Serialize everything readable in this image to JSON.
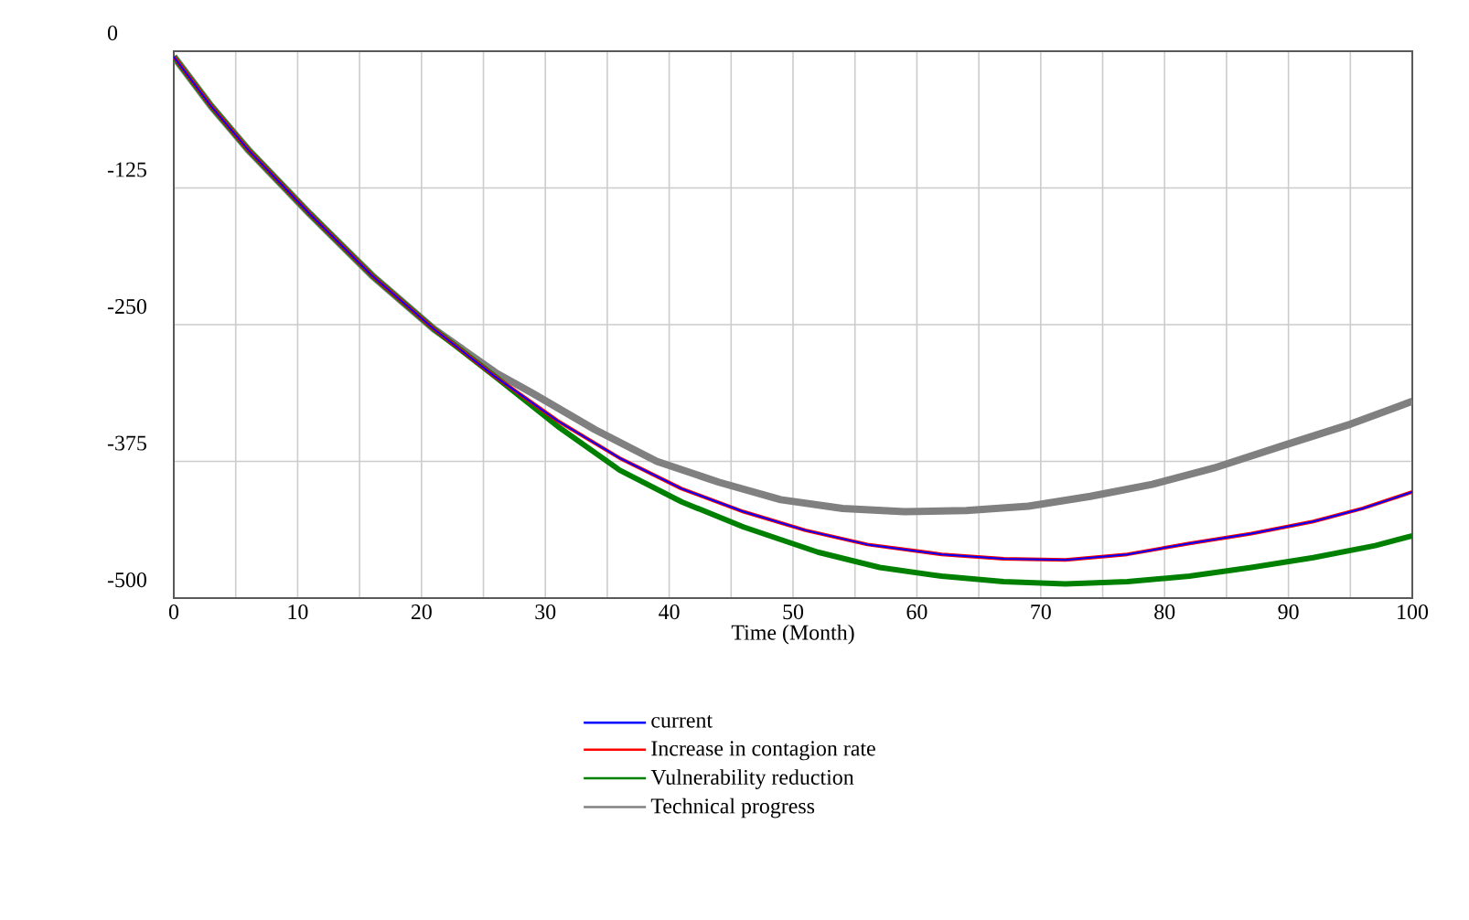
{
  "chart_data": {
    "type": "line",
    "xlabel": "Time (Month)",
    "xlim": [
      0,
      100
    ],
    "ylim": [
      -500,
      0
    ],
    "xticks": [
      0,
      {
        "value": 5,
        "label": null
      },
      10,
      {
        "value": 15,
        "label": null
      },
      20,
      {
        "value": 25,
        "label": null
      },
      30,
      {
        "value": 35,
        "label": null
      },
      40,
      {
        "value": 45,
        "label": null
      },
      50,
      {
        "value": 55,
        "label": null
      },
      60,
      {
        "value": 65,
        "label": null
      },
      70,
      {
        "value": 75,
        "label": null
      },
      80,
      {
        "value": 85,
        "label": null
      },
      90,
      {
        "value": 95,
        "label": null
      },
      100
    ],
    "yticks": [
      0,
      -125,
      -250,
      -375,
      -500
    ],
    "grid": true,
    "legend": "bottom",
    "line_style": "solid",
    "series": [
      {
        "name": "current",
        "color": "#0000ff",
        "x": [
          0,
          3,
          6,
          11,
          16,
          21,
          26,
          31,
          36,
          41,
          46,
          51,
          56,
          62,
          67,
          72,
          77,
          82,
          87,
          92,
          96,
          100
        ],
        "values": [
          -5,
          -50,
          -90,
          -149,
          -205,
          -254,
          -298,
          -338,
          -372,
          -400,
          -421,
          -438,
          -451,
          -460,
          -464,
          -465,
          -460,
          -450,
          -441,
          -430,
          -418,
          -403
        ]
      },
      {
        "name": "Increase in contagion rate",
        "color": "#ff0000",
        "x": [
          0,
          3,
          6,
          11,
          16,
          21,
          26,
          31,
          36,
          41,
          46,
          51,
          56,
          62,
          67,
          72,
          77,
          82,
          87,
          92,
          96,
          100
        ],
        "values": [
          -5,
          -50,
          -90,
          -149,
          -205,
          -254,
          -298,
          -338,
          -372,
          -400,
          -421,
          -438,
          -451,
          -460,
          -464,
          -465,
          -460,
          -450,
          -441,
          -430,
          -418,
          -403
        ]
      },
      {
        "name": "Vulnerability reduction",
        "color": "#008000",
        "x": [
          0,
          3,
          6,
          11,
          16,
          21,
          26,
          31,
          36,
          41,
          46,
          52,
          57,
          62,
          67,
          72,
          77,
          82,
          87,
          92,
          97,
          100
        ],
        "values": [
          -5,
          -50,
          -90,
          -149,
          -205,
          -254,
          -298,
          -343,
          -383,
          -412,
          -435,
          -458,
          -472,
          -480,
          -485,
          -487,
          -485,
          -480,
          -472,
          -463,
          -452,
          -443
        ]
      },
      {
        "name": "Technical progress",
        "color": "#808080",
        "x": [
          0,
          3,
          6,
          11,
          16,
          21,
          26,
          29,
          34,
          39,
          44,
          49,
          54,
          59,
          64,
          69,
          74,
          79,
          84,
          90,
          95,
          100
        ],
        "values": [
          -5,
          -50,
          -90,
          -149,
          -205,
          -254,
          -294,
          -313,
          -346,
          -375,
          -394,
          -410,
          -418,
          -421,
          -420,
          -416,
          -407,
          -396,
          -381,
          -359,
          -341,
          -320
        ]
      }
    ]
  }
}
